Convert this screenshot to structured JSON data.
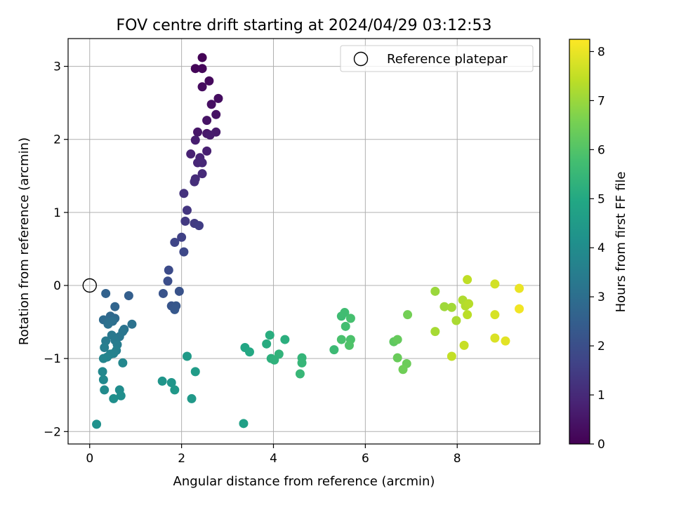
{
  "chart_data": {
    "type": "scatter",
    "title": "FOV centre drift starting at 2024/04/29 03:12:53",
    "xlabel": "Angular distance from reference (arcmin)",
    "ylabel": "Rotation from reference (arcmin)",
    "xlim": [
      -0.47,
      9.8
    ],
    "ylim": [
      -2.17,
      3.38
    ],
    "xticks": [
      0,
      2,
      4,
      6,
      8
    ],
    "xtick_labels": [
      "0",
      "2",
      "4",
      "6",
      "8"
    ],
    "yticks": [
      -2,
      -1,
      0,
      1,
      2,
      3
    ],
    "ytick_labels": [
      "−2",
      "−1",
      "0",
      "1",
      "2",
      "3"
    ],
    "grid": true,
    "legend": {
      "position": "top-right",
      "entries": [
        "Reference platepar"
      ]
    },
    "reference_point": {
      "x": 0,
      "y": 0
    },
    "colorbar": {
      "label": "Hours from first FF file",
      "colormap": "viridis",
      "range": [
        0,
        8.25
      ],
      "ticks": [
        0,
        1,
        2,
        3,
        4,
        5,
        6,
        7,
        8
      ],
      "tick_labels": [
        "0",
        "1",
        "2",
        "3",
        "4",
        "5",
        "6",
        "7",
        "8"
      ]
    },
    "series": [
      {
        "points": [
          [
            2.45,
            3.12,
            0.05
          ],
          [
            2.3,
            2.97,
            0.1
          ],
          [
            2.45,
            2.97,
            0.15
          ],
          [
            2.6,
            2.8,
            0.2
          ],
          [
            2.45,
            2.72,
            0.25
          ],
          [
            2.8,
            2.56,
            0.3
          ],
          [
            2.65,
            2.48,
            0.35
          ],
          [
            2.75,
            2.34,
            0.4
          ],
          [
            2.55,
            2.26,
            0.45
          ],
          [
            2.35,
            2.1,
            0.5
          ],
          [
            2.55,
            2.08,
            0.55
          ],
          [
            2.75,
            2.1,
            0.6
          ],
          [
            2.62,
            2.06,
            0.65
          ],
          [
            2.3,
            1.99,
            0.7
          ],
          [
            2.55,
            1.84,
            0.75
          ],
          [
            2.2,
            1.8,
            0.8
          ],
          [
            2.4,
            1.75,
            0.85
          ],
          [
            2.35,
            1.68,
            0.9
          ],
          [
            2.45,
            1.68,
            0.95
          ],
          [
            2.45,
            1.53,
            1.0
          ],
          [
            2.3,
            1.46,
            1.05
          ],
          [
            2.28,
            1.42,
            1.1
          ],
          [
            2.05,
            1.26,
            1.2
          ],
          [
            2.12,
            1.03,
            1.3
          ],
          [
            2.08,
            0.88,
            1.4
          ],
          [
            2.28,
            0.85,
            1.45
          ],
          [
            2.38,
            0.82,
            1.5
          ],
          [
            2.0,
            0.66,
            1.6
          ],
          [
            1.85,
            0.59,
            1.7
          ],
          [
            2.05,
            0.46,
            1.8
          ],
          [
            1.72,
            0.21,
            1.9
          ],
          [
            1.7,
            0.06,
            2.0
          ],
          [
            1.95,
            -0.08,
            2.1
          ],
          [
            1.6,
            -0.11,
            2.15
          ],
          [
            1.78,
            -0.28,
            2.2
          ],
          [
            1.88,
            -0.28,
            2.25
          ],
          [
            1.85,
            -0.33,
            2.3
          ],
          [
            0.85,
            -0.14,
            2.5
          ],
          [
            0.35,
            -0.11,
            2.6
          ],
          [
            0.55,
            -0.29,
            2.7
          ],
          [
            0.45,
            -0.42,
            2.8
          ],
          [
            0.55,
            -0.45,
            2.85
          ],
          [
            0.3,
            -0.47,
            2.9
          ],
          [
            0.4,
            -0.5,
            2.95
          ],
          [
            0.5,
            -0.49,
            3.0
          ],
          [
            0.4,
            -0.53,
            3.05
          ],
          [
            0.92,
            -0.53,
            3.1
          ],
          [
            0.75,
            -0.6,
            3.15
          ],
          [
            0.72,
            -0.63,
            3.2
          ],
          [
            0.65,
            -0.7,
            3.25
          ],
          [
            0.48,
            -0.68,
            3.3
          ],
          [
            0.55,
            -0.75,
            3.35
          ],
          [
            0.35,
            -0.76,
            3.4
          ],
          [
            0.6,
            -0.81,
            3.45
          ],
          [
            0.32,
            -0.85,
            3.5
          ],
          [
            0.58,
            -0.89,
            3.55
          ],
          [
            0.52,
            -0.93,
            3.6
          ],
          [
            0.45,
            -0.94,
            3.65
          ],
          [
            0.38,
            -0.98,
            3.7
          ],
          [
            0.3,
            -1.0,
            3.75
          ],
          [
            0.72,
            -1.06,
            3.8
          ],
          [
            0.28,
            -1.18,
            3.85
          ],
          [
            0.3,
            -1.29,
            3.9
          ],
          [
            0.32,
            -1.43,
            3.95
          ],
          [
            0.65,
            -1.43,
            4.0
          ],
          [
            0.68,
            -1.51,
            4.05
          ],
          [
            0.52,
            -1.55,
            4.1
          ],
          [
            0.15,
            -1.9,
            4.15
          ],
          [
            1.58,
            -1.31,
            4.3
          ],
          [
            1.78,
            -1.33,
            4.35
          ],
          [
            1.85,
            -1.43,
            4.4
          ],
          [
            2.22,
            -1.55,
            4.45
          ],
          [
            2.12,
            -0.97,
            4.5
          ],
          [
            2.3,
            -1.18,
            4.55
          ],
          [
            3.35,
            -1.89,
            4.7
          ],
          [
            3.38,
            -0.85,
            4.9
          ],
          [
            3.48,
            -0.91,
            5.0
          ],
          [
            3.85,
            -0.8,
            5.1
          ],
          [
            3.92,
            -0.68,
            5.15
          ],
          [
            4.25,
            -0.74,
            5.2
          ],
          [
            3.95,
            -1.0,
            5.25
          ],
          [
            4.02,
            -1.02,
            5.3
          ],
          [
            4.12,
            -0.94,
            5.35
          ],
          [
            4.62,
            -0.99,
            5.4
          ],
          [
            4.62,
            -1.06,
            5.45
          ],
          [
            4.58,
            -1.21,
            5.5
          ],
          [
            5.32,
            -0.88,
            5.6
          ],
          [
            5.48,
            -0.42,
            5.65
          ],
          [
            5.55,
            -0.37,
            5.7
          ],
          [
            5.57,
            -0.56,
            5.75
          ],
          [
            5.68,
            -0.45,
            5.8
          ],
          [
            5.48,
            -0.74,
            5.85
          ],
          [
            5.68,
            -0.74,
            5.9
          ],
          [
            5.65,
            -0.82,
            5.95
          ],
          [
            6.62,
            -0.77,
            6.2
          ],
          [
            6.7,
            -0.74,
            6.3
          ],
          [
            6.7,
            -0.99,
            6.35
          ],
          [
            6.9,
            -1.07,
            6.4
          ],
          [
            6.82,
            -1.15,
            6.45
          ],
          [
            6.92,
            -0.4,
            6.5
          ],
          [
            7.52,
            -0.08,
            7.0
          ],
          [
            7.72,
            -0.29,
            7.05
          ],
          [
            7.88,
            -0.3,
            7.1
          ],
          [
            7.52,
            -0.63,
            7.15
          ],
          [
            7.98,
            -0.48,
            7.2
          ],
          [
            8.12,
            -0.2,
            7.25
          ],
          [
            8.18,
            -0.28,
            7.3
          ],
          [
            8.25,
            -0.25,
            7.35
          ],
          [
            8.22,
            -0.4,
            7.4
          ],
          [
            8.22,
            0.08,
            7.45
          ],
          [
            7.88,
            -0.97,
            7.5
          ],
          [
            8.15,
            -0.82,
            7.55
          ],
          [
            8.82,
            0.02,
            7.7
          ],
          [
            8.82,
            -0.4,
            7.75
          ],
          [
            8.82,
            -0.72,
            7.8
          ],
          [
            9.05,
            -0.76,
            7.9
          ],
          [
            9.35,
            -0.04,
            8.0
          ],
          [
            9.35,
            -0.32,
            8.1
          ]
        ]
      }
    ]
  }
}
